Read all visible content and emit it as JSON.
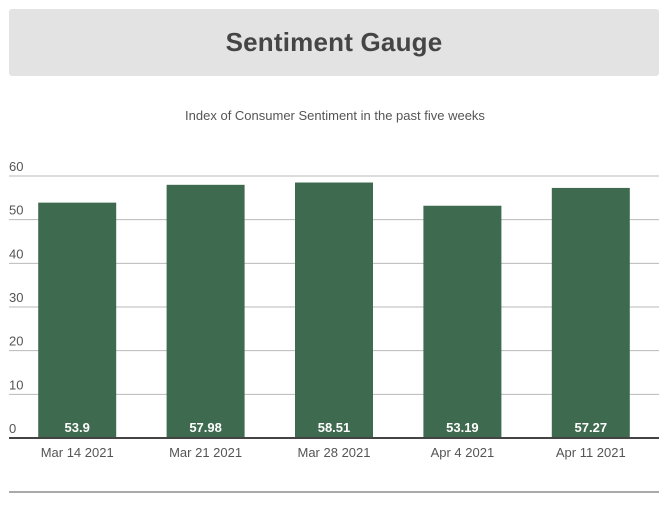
{
  "header": {
    "title": "Sentiment Gauge"
  },
  "chart_data": {
    "type": "bar",
    "title": "Sentiment Gauge",
    "subtitle": "Index of Consumer Sentiment in the past five weeks",
    "categories": [
      "Mar 14 2021",
      "Mar 21 2021",
      "Mar 28 2021",
      "Apr 4 2021",
      "Apr 11 2021"
    ],
    "values": [
      53.9,
      57.98,
      58.51,
      53.19,
      57.27
    ],
    "data_labels": [
      "53.9",
      "57.98",
      "58.51",
      "53.19",
      "57.27"
    ],
    "ylim": [
      0,
      60
    ],
    "yticks": [
      "0",
      "10",
      "20",
      "30",
      "40",
      "50",
      "60"
    ],
    "xlabel": "",
    "ylabel": "",
    "grid": true,
    "legend": "none",
    "colors": {
      "bar": "#3e6b4f",
      "grid": "#b9b9b9",
      "axis": "#444444",
      "label_text": "#ffffff"
    }
  }
}
